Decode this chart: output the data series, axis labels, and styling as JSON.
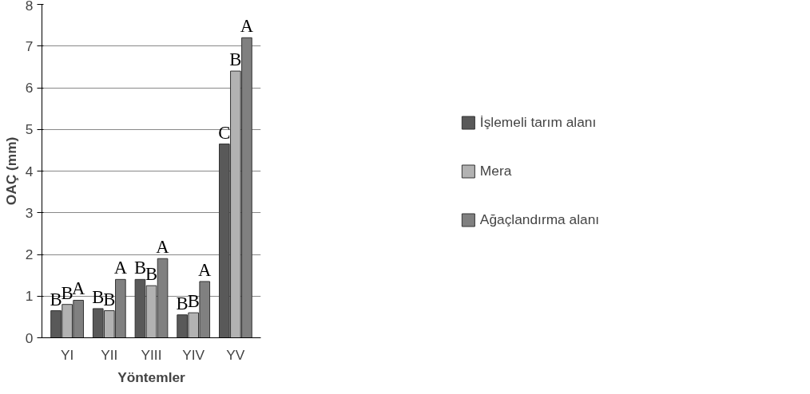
{
  "chart_data": {
    "type": "bar",
    "xlabel": "Yöntemler",
    "ylabel": "OAÇ (mm)",
    "categories": [
      "YI",
      "YII",
      "YIII",
      "YIV",
      "YV"
    ],
    "series": [
      {
        "name": "İşlemeli tarım alanı",
        "color": "#595959",
        "values": [
          0.65,
          0.7,
          1.4,
          0.55,
          4.65
        ],
        "value_labels": [
          "B",
          "B",
          "B",
          "B",
          "C"
        ]
      },
      {
        "name": "Mera",
        "color": "#b2b2b2",
        "values": [
          0.8,
          0.65,
          1.25,
          0.6,
          6.4
        ],
        "value_labels": [
          "B",
          "B",
          "B",
          "B",
          "B"
        ]
      },
      {
        "name": "Ağaçlandırma alanı",
        "color": "#808080",
        "values": [
          0.9,
          1.4,
          1.9,
          1.35,
          7.2
        ],
        "value_labels": [
          "A",
          "A",
          "A",
          "A",
          "A"
        ]
      }
    ],
    "ylim": [
      0,
      8
    ],
    "yticks": [
      0,
      1,
      2,
      3,
      4,
      5,
      6,
      7,
      8
    ],
    "grid": "y",
    "legend": "right"
  }
}
